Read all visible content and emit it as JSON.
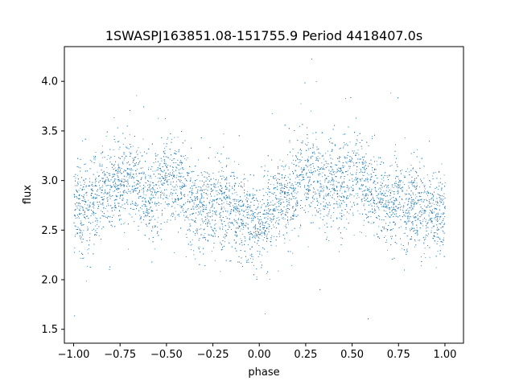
{
  "chart_data": {
    "type": "scatter",
    "title": "1SWASPJ163851.08-151755.9 Period 4418407.0s",
    "xlabel": "phase",
    "ylabel": "flux",
    "xlim": [
      -1.05,
      1.1
    ],
    "ylim": [
      1.36,
      4.35
    ],
    "xticks": [
      -1.0,
      -0.75,
      -0.5,
      -0.25,
      0.0,
      0.25,
      0.5,
      0.75,
      1.0
    ],
    "xtick_labels": [
      "−1.00",
      "−0.75",
      "−0.50",
      "−0.25",
      "0.00",
      "0.25",
      "0.50",
      "0.75",
      "1.00"
    ],
    "yticks": [
      1.5,
      2.0,
      2.5,
      3.0,
      3.5,
      4.0
    ],
    "ytick_labels": [
      "1.5",
      "2.0",
      "2.5",
      "3.0",
      "3.5",
      "4.0"
    ],
    "grid": false,
    "legend": "none",
    "marker_color": "#1f77b4",
    "series": [
      {
        "x_range": [
          -1.0,
          1.0
        ],
        "points": [
          [
            -1.0,
            2.7
          ],
          [
            -0.98,
            2.82
          ],
          [
            -0.96,
            2.65
          ],
          [
            -0.94,
            2.78
          ],
          [
            -0.92,
            2.6
          ],
          [
            -0.9,
            2.85
          ],
          [
            -0.88,
            2.72
          ],
          [
            -0.85,
            2.9
          ],
          [
            -0.82,
            2.95
          ],
          [
            -0.8,
            2.88
          ],
          [
            -0.78,
            3.0
          ],
          [
            -0.75,
            3.05
          ],
          [
            -0.72,
            2.98
          ],
          [
            -0.7,
            3.1
          ],
          [
            -0.68,
            2.92
          ],
          [
            -0.65,
            3.02
          ],
          [
            -0.62,
            2.85
          ],
          [
            -0.6,
            2.95
          ],
          [
            -0.58,
            2.8
          ],
          [
            -0.55,
            2.9
          ],
          [
            -0.52,
            3.08
          ],
          [
            -0.5,
            3.0
          ],
          [
            -0.48,
            3.05
          ],
          [
            -0.45,
            2.95
          ],
          [
            -0.42,
            2.9
          ],
          [
            -0.4,
            2.85
          ],
          [
            -0.38,
            2.82
          ],
          [
            -0.35,
            2.78
          ],
          [
            -0.32,
            2.75
          ],
          [
            -0.3,
            2.7
          ],
          [
            -0.28,
            2.8
          ],
          [
            -0.25,
            2.76
          ],
          [
            -0.22,
            2.82
          ],
          [
            -0.2,
            2.72
          ],
          [
            -0.18,
            2.78
          ],
          [
            -0.15,
            2.68
          ],
          [
            -0.12,
            2.62
          ],
          [
            -0.1,
            2.58
          ],
          [
            -0.08,
            2.65
          ],
          [
            -0.05,
            2.6
          ],
          [
            -0.02,
            2.55
          ],
          [
            0.0,
            2.62
          ],
          [
            0.02,
            2.58
          ],
          [
            0.05,
            2.66
          ],
          [
            0.08,
            2.72
          ],
          [
            0.1,
            2.78
          ],
          [
            0.12,
            2.8
          ],
          [
            0.15,
            2.85
          ],
          [
            0.18,
            2.9
          ],
          [
            0.2,
            2.95
          ],
          [
            0.22,
            3.0
          ],
          [
            0.25,
            3.05
          ],
          [
            0.28,
            3.1
          ],
          [
            0.3,
            3.08
          ],
          [
            0.32,
            2.98
          ],
          [
            0.35,
            2.95
          ],
          [
            0.38,
            2.9
          ],
          [
            0.4,
            3.0
          ],
          [
            0.42,
            2.92
          ],
          [
            0.45,
            2.95
          ],
          [
            0.48,
            3.05
          ],
          [
            0.5,
            3.1
          ],
          [
            0.52,
            3.12
          ],
          [
            0.55,
            3.05
          ],
          [
            0.58,
            2.95
          ],
          [
            0.6,
            2.9
          ],
          [
            0.62,
            2.85
          ],
          [
            0.65,
            2.82
          ],
          [
            0.68,
            2.78
          ],
          [
            0.7,
            2.75
          ],
          [
            0.72,
            2.7
          ],
          [
            0.75,
            2.8
          ],
          [
            0.78,
            2.78
          ],
          [
            0.8,
            2.74
          ],
          [
            0.82,
            2.8
          ],
          [
            0.85,
            2.68
          ],
          [
            0.88,
            2.64
          ],
          [
            0.9,
            2.7
          ],
          [
            0.92,
            2.66
          ],
          [
            0.95,
            2.62
          ],
          [
            0.98,
            2.68
          ],
          [
            1.0,
            2.7
          ]
        ]
      }
    ]
  }
}
